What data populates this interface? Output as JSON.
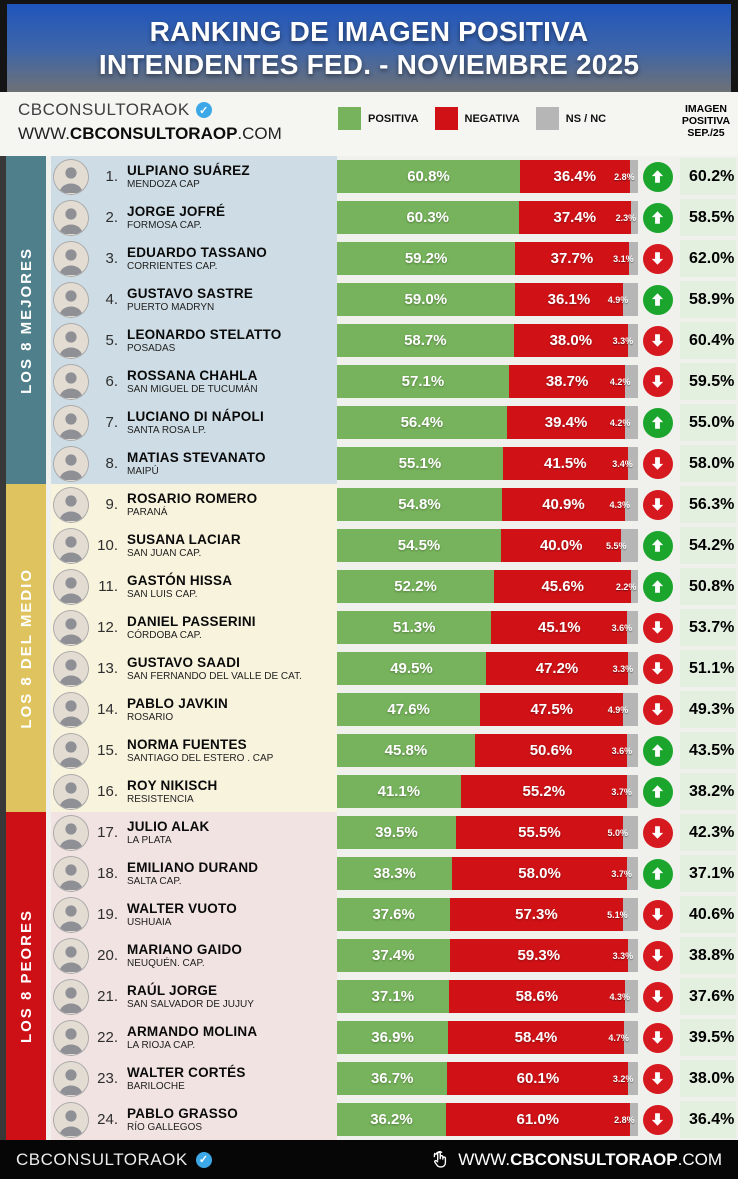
{
  "title": {
    "line1": "RANKING DE IMAGEN POSITIVA",
    "line2": "INTENDENTES FED. - NOVIEMBRE 2025"
  },
  "subheader": {
    "brand": "CBCONSULTORAOK",
    "badge_icon": "verified-check",
    "site_prefix": "WWW.",
    "site_bold": "CBCONSULTORAOP",
    "site_suffix": ".COM",
    "legend": [
      {
        "label": "POSITIVA",
        "color": "#77b35c"
      },
      {
        "label": "NEGATIVA",
        "color": "#d01217"
      },
      {
        "label": "NS / NC",
        "color": "#b6b6b6"
      }
    ],
    "prev_header_lines": [
      "IMAGEN",
      "POSITIVA",
      "SEP./25"
    ]
  },
  "groups": [
    {
      "label": "LOS 8 MEJORES",
      "strip_color": "#4e7f8b",
      "row_bg": "#cedde5"
    },
    {
      "label": "LOS 8 DEL MEDIO",
      "strip_color": "#dfc35e",
      "row_bg": "#f8f3dd"
    },
    {
      "label": "LOS 8 PEORES",
      "strip_color": "#cc1016",
      "row_bg": "#f1e3e2"
    }
  ],
  "rows": [
    {
      "rank": "1.",
      "name": "ULPIANO SUÁREZ",
      "city": "MENDOZA CAP",
      "positiva": 60.8,
      "negativa": 36.4,
      "nsnc": 2.8,
      "trend": "up",
      "prev": 60.2
    },
    {
      "rank": "2.",
      "name": "JORGE JOFRÉ",
      "city": "FORMOSA CAP.",
      "positiva": 60.3,
      "negativa": 37.4,
      "nsnc": 2.3,
      "trend": "up",
      "prev": 58.5
    },
    {
      "rank": "3.",
      "name": "EDUARDO TASSANO",
      "city": "CORRIENTES CAP.",
      "positiva": 59.2,
      "negativa": 37.7,
      "nsnc": 3.1,
      "trend": "down",
      "prev": 62.0
    },
    {
      "rank": "4.",
      "name": "GUSTAVO SASTRE",
      "city": "PUERTO MADRYN",
      "positiva": 59.0,
      "negativa": 36.1,
      "nsnc": 4.9,
      "trend": "up",
      "prev": 58.9
    },
    {
      "rank": "5.",
      "name": "LEONARDO STELATTO",
      "city": "POSADAS",
      "positiva": 58.7,
      "negativa": 38.0,
      "nsnc": 3.3,
      "trend": "down",
      "prev": 60.4
    },
    {
      "rank": "6.",
      "name": "ROSSANA CHAHLA",
      "city": "SAN MIGUEL DE TUCUMÁN",
      "positiva": 57.1,
      "negativa": 38.7,
      "nsnc": 4.2,
      "trend": "down",
      "prev": 59.5
    },
    {
      "rank": "7.",
      "name": "LUCIANO DI NÁPOLI",
      "city": "SANTA ROSA LP.",
      "positiva": 56.4,
      "negativa": 39.4,
      "nsnc": 4.2,
      "trend": "up",
      "prev": 55.0
    },
    {
      "rank": "8.",
      "name": "MATIAS STEVANATO",
      "city": "MAIPÚ",
      "positiva": 55.1,
      "negativa": 41.5,
      "nsnc": 3.4,
      "trend": "down",
      "prev": 58.0
    },
    {
      "rank": "9.",
      "name": "ROSARIO ROMERO",
      "city": "PARANÁ",
      "positiva": 54.8,
      "negativa": 40.9,
      "nsnc": 4.3,
      "trend": "down",
      "prev": 56.3
    },
    {
      "rank": "10.",
      "name": "SUSANA LACIAR",
      "city": "SAN JUAN CAP.",
      "positiva": 54.5,
      "negativa": 40.0,
      "nsnc": 5.5,
      "trend": "up",
      "prev": 54.2
    },
    {
      "rank": "11.",
      "name": "GASTÓN HISSA",
      "city": "SAN LUIS CAP.",
      "positiva": 52.2,
      "negativa": 45.6,
      "nsnc": 2.2,
      "trend": "up",
      "prev": 50.8
    },
    {
      "rank": "12.",
      "name": "DANIEL PASSERINI",
      "city": "CÓRDOBA CAP.",
      "positiva": 51.3,
      "negativa": 45.1,
      "nsnc": 3.6,
      "trend": "down",
      "prev": 53.7
    },
    {
      "rank": "13.",
      "name": "GUSTAVO SAADI",
      "city": "SAN FERNANDO DEL VALLE DE CAT.",
      "positiva": 49.5,
      "negativa": 47.2,
      "nsnc": 3.3,
      "trend": "down",
      "prev": 51.1
    },
    {
      "rank": "14.",
      "name": "PABLO JAVKIN",
      "city": "ROSARIO",
      "positiva": 47.6,
      "negativa": 47.5,
      "nsnc": 4.9,
      "trend": "down",
      "prev": 49.3
    },
    {
      "rank": "15.",
      "name": "NORMA FUENTES",
      "city": "SANTIAGO DEL ESTERO . CAP",
      "positiva": 45.8,
      "negativa": 50.6,
      "nsnc": 3.6,
      "trend": "up",
      "prev": 43.5
    },
    {
      "rank": "16.",
      "name": "ROY NIKISCH",
      "city": "RESISTENCIA",
      "positiva": 41.1,
      "negativa": 55.2,
      "nsnc": 3.7,
      "trend": "up",
      "prev": 38.2
    },
    {
      "rank": "17.",
      "name": "JULIO ALAK",
      "city": "LA PLATA",
      "positiva": 39.5,
      "negativa": 55.5,
      "nsnc": 5.0,
      "trend": "down",
      "prev": 42.3
    },
    {
      "rank": "18.",
      "name": "EMILIANO DURAND",
      "city": "SALTA CAP.",
      "positiva": 38.3,
      "negativa": 58.0,
      "nsnc": 3.7,
      "trend": "up",
      "prev": 37.1
    },
    {
      "rank": "19.",
      "name": "WALTER VUOTO",
      "city": "USHUAIA",
      "positiva": 37.6,
      "negativa": 57.3,
      "nsnc": 5.1,
      "trend": "down",
      "prev": 40.6
    },
    {
      "rank": "20.",
      "name": "MARIANO GAIDO",
      "city": "NEUQUÉN. CAP.",
      "positiva": 37.4,
      "negativa": 59.3,
      "nsnc": 3.3,
      "trend": "down",
      "prev": 38.8
    },
    {
      "rank": "21.",
      "name": "RAÚL JORGE",
      "city": "SAN SALVADOR DE JUJUY",
      "positiva": 37.1,
      "negativa": 58.6,
      "nsnc": 4.3,
      "trend": "down",
      "prev": 37.6
    },
    {
      "rank": "22.",
      "name": "ARMANDO MOLINA",
      "city": "LA RIOJA CAP.",
      "positiva": 36.9,
      "negativa": 58.4,
      "nsnc": 4.7,
      "trend": "down",
      "prev": 39.5
    },
    {
      "rank": "23.",
      "name": "WALTER CORTÉS",
      "city": "BARILOCHE",
      "positiva": 36.7,
      "negativa": 60.1,
      "nsnc": 3.2,
      "trend": "down",
      "prev": 38.0
    },
    {
      "rank": "24.",
      "name": "PABLO GRASSO",
      "city": "RÍO GALLEGOS",
      "positiva": 36.2,
      "negativa": 61.0,
      "nsnc": 2.8,
      "trend": "down",
      "prev": 36.4
    }
  ],
  "footer": {
    "brand": "CBCONSULTORAOK",
    "badge_icon": "verified-check",
    "tap_icon": "tap-hand",
    "site_prefix": "WWW.",
    "site_bold": "CBCONSULTORAOP",
    "site_suffix": ".COM"
  },
  "icons": {
    "verified": "verified-badge-icon",
    "up": "up-arrow-icon",
    "down": "down-arrow-icon",
    "tap": "tap-hand-icon",
    "avatar": "person-avatar"
  },
  "chart_data": {
    "type": "bar",
    "orientation": "horizontal-stacked",
    "title": "RANKING DE IMAGEN POSITIVA INTENDENTES FED. - NOVIEMBRE 2025",
    "xlim": [
      0,
      100
    ],
    "legend_position": "top",
    "categories": [
      "ULPIANO SUÁREZ",
      "JORGE JOFRÉ",
      "EDUARDO TASSANO",
      "GUSTAVO SASTRE",
      "LEONARDO STELATTO",
      "ROSSANA CHAHLA",
      "LUCIANO DI NÁPOLI",
      "MATIAS STEVANATO",
      "ROSARIO ROMERO",
      "SUSANA LACIAR",
      "GASTÓN HISSA",
      "DANIEL PASSERINI",
      "GUSTAVO SAADI",
      "PABLO JAVKIN",
      "NORMA FUENTES",
      "ROY NIKISCH",
      "JULIO ALAK",
      "EMILIANO DURAND",
      "WALTER VUOTO",
      "MARIANO GAIDO",
      "RAÚL JORGE",
      "ARMANDO MOLINA",
      "WALTER CORTÉS",
      "PABLO GRASSO"
    ],
    "series": [
      {
        "name": "POSITIVA",
        "color": "#77b35c",
        "values": [
          60.8,
          60.3,
          59.2,
          59.0,
          58.7,
          57.1,
          56.4,
          55.1,
          54.8,
          54.5,
          52.2,
          51.3,
          49.5,
          47.6,
          45.8,
          41.1,
          39.5,
          38.3,
          37.6,
          37.4,
          37.1,
          36.9,
          36.7,
          36.2
        ]
      },
      {
        "name": "NEGATIVA",
        "color": "#d01217",
        "values": [
          36.4,
          37.4,
          37.7,
          36.1,
          38.0,
          38.7,
          39.4,
          41.5,
          40.9,
          40.0,
          45.6,
          45.1,
          47.2,
          47.5,
          50.6,
          55.2,
          55.5,
          58.0,
          57.3,
          59.3,
          58.6,
          58.4,
          60.1,
          61.0
        ]
      },
      {
        "name": "NS / NC",
        "color": "#b6b6b6",
        "values": [
          2.8,
          2.3,
          3.1,
          4.9,
          3.3,
          4.2,
          4.2,
          3.4,
          4.3,
          5.5,
          2.2,
          3.6,
          3.3,
          4.9,
          3.6,
          3.7,
          5.0,
          3.7,
          5.1,
          3.3,
          4.3,
          4.7,
          3.2,
          2.8
        ]
      }
    ],
    "comparison": {
      "name": "IMAGEN POSITIVA SEP./25",
      "values": [
        60.2,
        58.5,
        62.0,
        58.9,
        60.4,
        59.5,
        55.0,
        58.0,
        56.3,
        54.2,
        50.8,
        53.7,
        51.1,
        49.3,
        43.5,
        38.2,
        42.3,
        37.1,
        40.6,
        38.8,
        37.6,
        39.5,
        38.0,
        36.4
      ]
    },
    "trend": [
      "up",
      "up",
      "down",
      "up",
      "down",
      "down",
      "up",
      "down",
      "down",
      "up",
      "up",
      "down",
      "down",
      "down",
      "up",
      "up",
      "down",
      "up",
      "down",
      "down",
      "down",
      "down",
      "down",
      "down"
    ],
    "groups": [
      {
        "label": "LOS 8 MEJORES",
        "rows": "1-8"
      },
      {
        "label": "LOS 8 DEL MEDIO",
        "rows": "9-16"
      },
      {
        "label": "LOS 8 PEORES",
        "rows": "17-24"
      }
    ]
  }
}
